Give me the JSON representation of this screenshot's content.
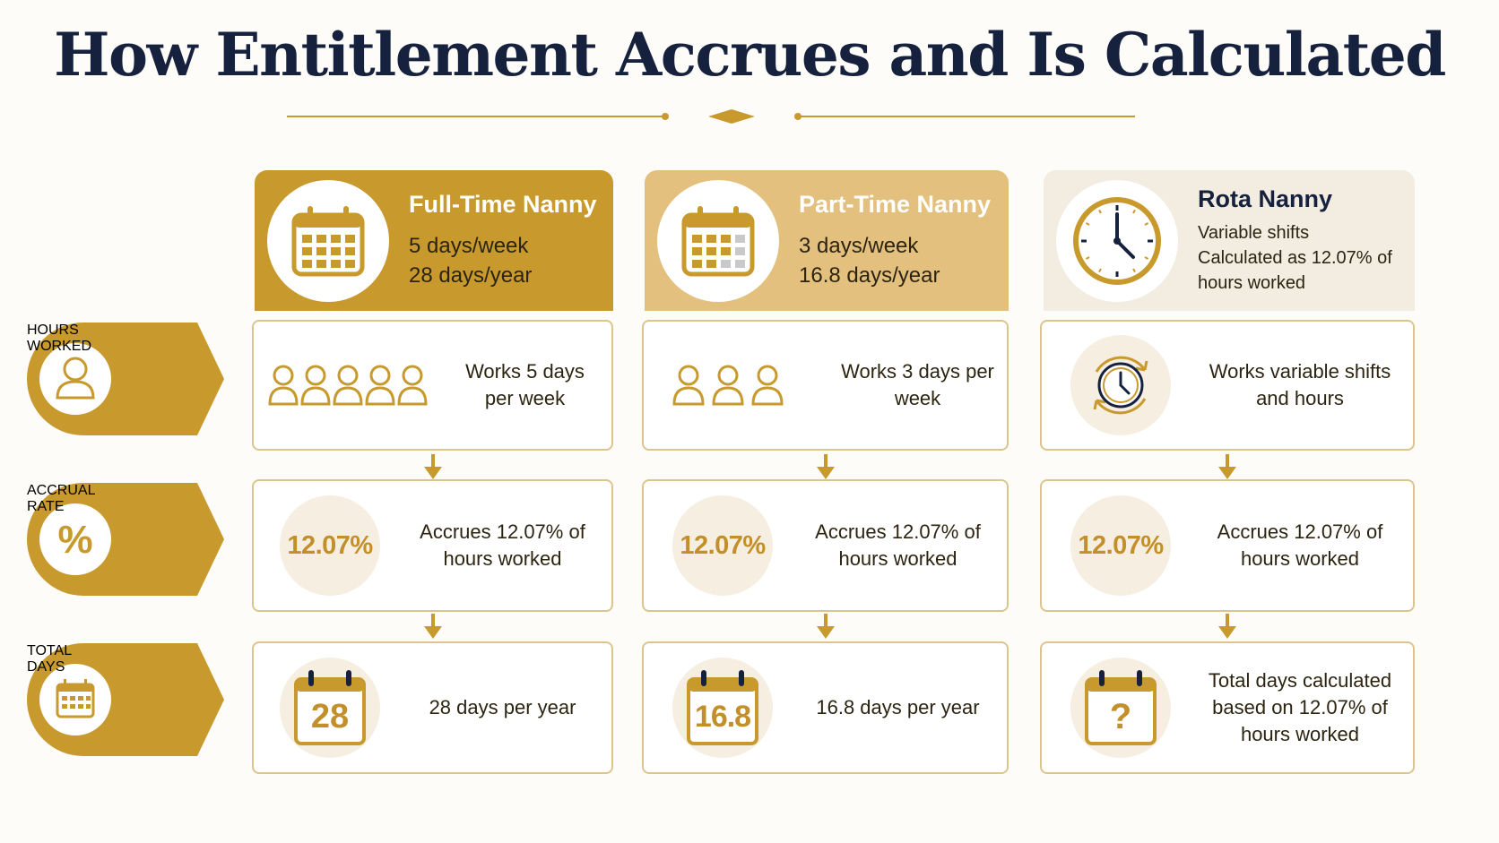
{
  "title": "How Entitlement Accrues and Is Calculated",
  "colors": {
    "gold": "#c89a2e",
    "light_gold": "#e3c07e",
    "cream": "#f2ece1",
    "navy": "#16213e"
  },
  "row_labels": [
    {
      "line1": "HOURS",
      "line2": "WORKED",
      "icon": "person-icon"
    },
    {
      "line1": "ACCRUAL",
      "line2": "RATE",
      "icon": "percent-icon"
    },
    {
      "line1": "TOTAL",
      "line2": "DAYS",
      "icon": "calendar-icon"
    }
  ],
  "columns": [
    {
      "name": "Full-Time Nanny",
      "line1": "5 days/week",
      "line2": "28 days/year",
      "header_icon": "calendar-icon",
      "hours_text": "Works 5 days per week",
      "hours_icon": "five-people-icon",
      "rate_value": "12.07%",
      "rate_text": "Accrues 12.07% of hours worked",
      "total_value": "28",
      "total_text": "28 days per year"
    },
    {
      "name": "Part-Time Nanny",
      "line1": "3 days/week",
      "line2": "16.8 days/year",
      "header_icon": "calendar-partial-icon",
      "hours_text": "Works 3 days per week",
      "hours_icon": "three-people-icon",
      "rate_value": "12.07%",
      "rate_text": "Accrues 12.07% of hours worked",
      "total_value": "16.8",
      "total_text": "16.8 days per year"
    },
    {
      "name": "Rota Nanny",
      "line1": "Variable shifts",
      "line2": "Calculated as 12.07% of hours worked",
      "header_icon": "clock-icon",
      "hours_text": "Works variable shifts and hours",
      "hours_icon": "rotating-clock-icon",
      "rate_value": "12.07%",
      "rate_text": "Accrues 12.07% of hours worked",
      "total_value": "?",
      "total_text": "Total days calculated based on 12.07% of hours worked"
    }
  ]
}
